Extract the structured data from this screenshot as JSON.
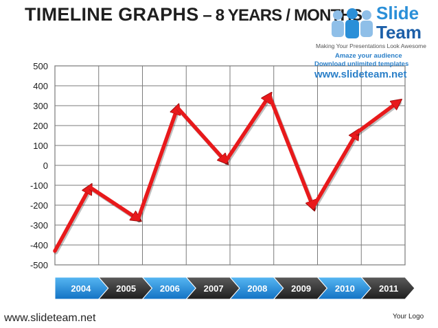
{
  "header": {
    "title_main": "TIMELINE  GRAPHS",
    "title_sub": " – 8 YEARS / MONTHS"
  },
  "logo": {
    "brand_line1": "Slide",
    "brand_line2": "Team",
    "tagline": "Making Your Presentations Look Awesome",
    "amaze": "Amaze your audience",
    "download": "Download unlimited templates",
    "url": "www.slideteam.net"
  },
  "footer": {
    "url": "www.slideteam.net",
    "logo_text": "Your Logo"
  },
  "chart_data": {
    "type": "line",
    "categories": [
      "2004",
      "2005",
      "2006",
      "2007",
      "2008",
      "2009",
      "2010",
      "2011"
    ],
    "series": [
      {
        "color": "#e8191b",
        "x": [
          0,
          0.8,
          1.9,
          2.8,
          3.9,
          4.9,
          5.9,
          6.9,
          7.85
        ],
        "values": [
          -430,
          -110,
          -270,
          290,
          20,
          350,
          -210,
          165,
          320
        ]
      }
    ],
    "yticks": [
      500,
      400,
      300,
      200,
      100,
      0,
      -100,
      -200,
      -300,
      -400,
      -500
    ],
    "ylim": [
      -500,
      500
    ],
    "xlim": [
      0,
      8
    ],
    "grid": true,
    "category_colors": [
      "#2592dd",
      "#3a3a3a",
      "#2592dd",
      "#3a3a3a",
      "#2592dd",
      "#3a3a3a",
      "#2592dd",
      "#3a3a3a"
    ]
  }
}
